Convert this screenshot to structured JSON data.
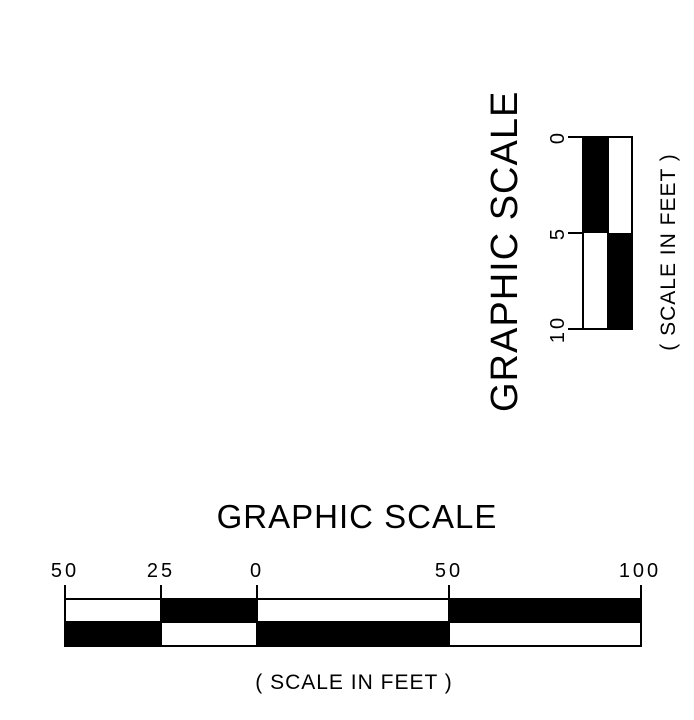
{
  "vertical_scale": {
    "title": "GRAPHIC SCALE",
    "units_label": "( SCALE IN FEET )",
    "ticks": [
      "0",
      "5",
      "10"
    ],
    "bar_color": "#000000"
  },
  "horizontal_scale": {
    "title": "GRAPHIC SCALE",
    "units_label": "( SCALE IN FEET )",
    "ticks": [
      "50",
      "25",
      "0",
      "50",
      "100"
    ],
    "bar_color": "#000000"
  }
}
